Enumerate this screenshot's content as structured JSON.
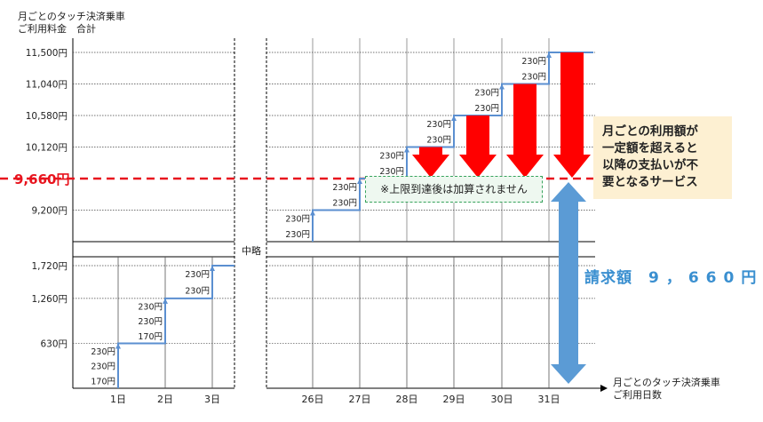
{
  "chart_data": {
    "type": "line",
    "title": "",
    "y_axis_title": [
      "月ごとのタッチ決済乗車",
      "ご利用料金　合計"
    ],
    "x_axis_title": [
      "月ごとのタッチ決済乗車",
      "ご利用日数"
    ],
    "omitted_label": "中略",
    "y_ticks_upper": [
      "11,500円",
      "11,040円",
      "10,580円",
      "10,120円",
      "9,200円"
    ],
    "y_ticks_lower": [
      "1,720円",
      "1,260円",
      "630円"
    ],
    "x_ticks_left": [
      "1日",
      "2日",
      "3日"
    ],
    "x_ticks_right": [
      "26日",
      "27日",
      "28日",
      "29日",
      "30日",
      "31日"
    ],
    "cap_value_label": "9,660円",
    "cap_value": 9660,
    "series": [
      {
        "values_start_days": [
          {
            "day": "1日",
            "cumulative": 630,
            "rides": [
              "170円",
              "230円",
              "230円"
            ]
          },
          {
            "day": "2日",
            "cumulative": 1260,
            "rides": [
              "170円",
              "230円",
              "230円"
            ]
          },
          {
            "day": "3日",
            "cumulative": 1720,
            "rides": [
              "230円",
              "230円"
            ]
          }
        ],
        "values_end_days": [
          {
            "day": "26日",
            "cumulative": 9200,
            "rides": [
              "230円",
              "230円"
            ]
          },
          {
            "day": "27日",
            "cumulative": 9660,
            "rides": [
              "230円",
              "230円"
            ]
          },
          {
            "day": "28日",
            "cumulative": 10120,
            "rides": [
              "230円",
              "230円"
            ]
          },
          {
            "day": "29日",
            "cumulative": 10580,
            "rides": [
              "230円",
              "230円"
            ]
          },
          {
            "day": "30日",
            "cumulative": 11040,
            "rides": [
              "230円",
              "230円"
            ]
          },
          {
            "day": "31日",
            "cumulative": 11500,
            "rides": [
              "230円",
              "230円"
            ]
          }
        ]
      }
    ],
    "grid": true,
    "colors": {
      "line": "#5b8fd0",
      "cap_line": "#e8141e",
      "arrow_red": "#ff0000",
      "arrow_blue": "#5b9bd5",
      "cap_label": "#e8141e"
    }
  },
  "annotations": {
    "cap_note": "※上限到達後は加算されません",
    "service_note": [
      "月ごとの利用額が",
      "一定額を超えると",
      "以降の支払いが不",
      "要となるサービス"
    ],
    "billing_label": "請求額",
    "billing_amount": "9，660円"
  }
}
